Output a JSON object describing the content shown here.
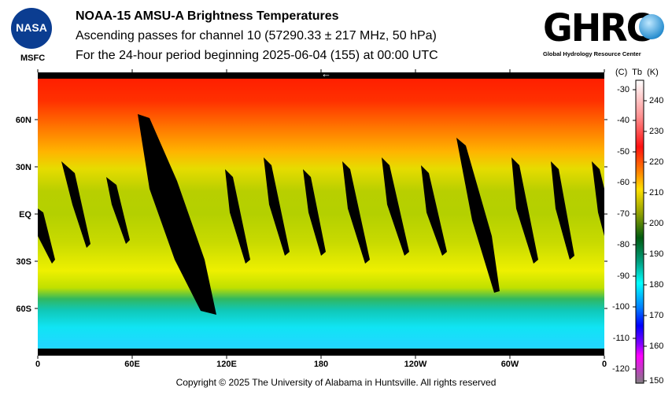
{
  "header": {
    "title": "NOAA-15 AMSU-A Brightness Temperatures",
    "subtitle": "Ascending passes for channel 10 (57290.33 ± 217 MHz, 50 hPa)",
    "period": "For the 24-hour period beginning 2025-06-04 (155) at 00:00 UTC"
  },
  "logos": {
    "nasa": "NASA",
    "msfc": "MSFC",
    "ghrc": "GHRC",
    "ghrc_sub": "Global Hydrology Resource Center"
  },
  "map": {
    "lat_labels": [
      "60N",
      "30N",
      "EQ",
      "30S",
      "60S"
    ],
    "lon_labels": [
      "0",
      "60E",
      "120E",
      "180",
      "120W",
      "60W",
      "0"
    ],
    "direction_arrow": "←"
  },
  "colorbar": {
    "header": "(C)  Tb  (K)",
    "celsius_ticks": [
      "-30",
      "-40",
      "-50",
      "-60",
      "-70",
      "-80",
      "-90",
      "-100",
      "-110",
      "-120"
    ],
    "kelvin_ticks": [
      "240",
      "230",
      "220",
      "210",
      "200",
      "190",
      "180",
      "170",
      "160",
      "150"
    ]
  },
  "footer": "Copyright © 2025 The University of Alabama in Huntsville.  All rights reserved"
}
